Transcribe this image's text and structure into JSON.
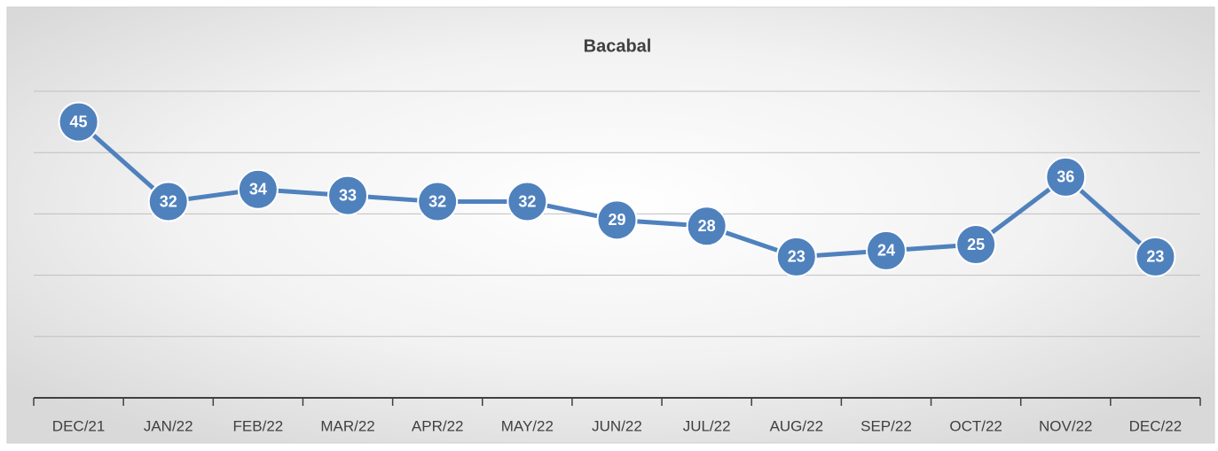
{
  "chart_data": {
    "type": "line",
    "title": "Bacabal",
    "categories": [
      "DEC/21",
      "JAN/22",
      "FEB/22",
      "MAR/22",
      "APR/22",
      "MAY/22",
      "JUN/22",
      "JUL/22",
      "AUG/22",
      "SEP/22",
      "OCT/22",
      "NOV/22",
      "DEC/22"
    ],
    "values": [
      45,
      32,
      34,
      33,
      32,
      32,
      29,
      28,
      23,
      24,
      25,
      36,
      23
    ],
    "color": "#4f81bd",
    "ylim": [
      0,
      50
    ],
    "yticks": [
      0,
      10,
      20,
      30,
      40,
      50
    ],
    "grid": true
  }
}
